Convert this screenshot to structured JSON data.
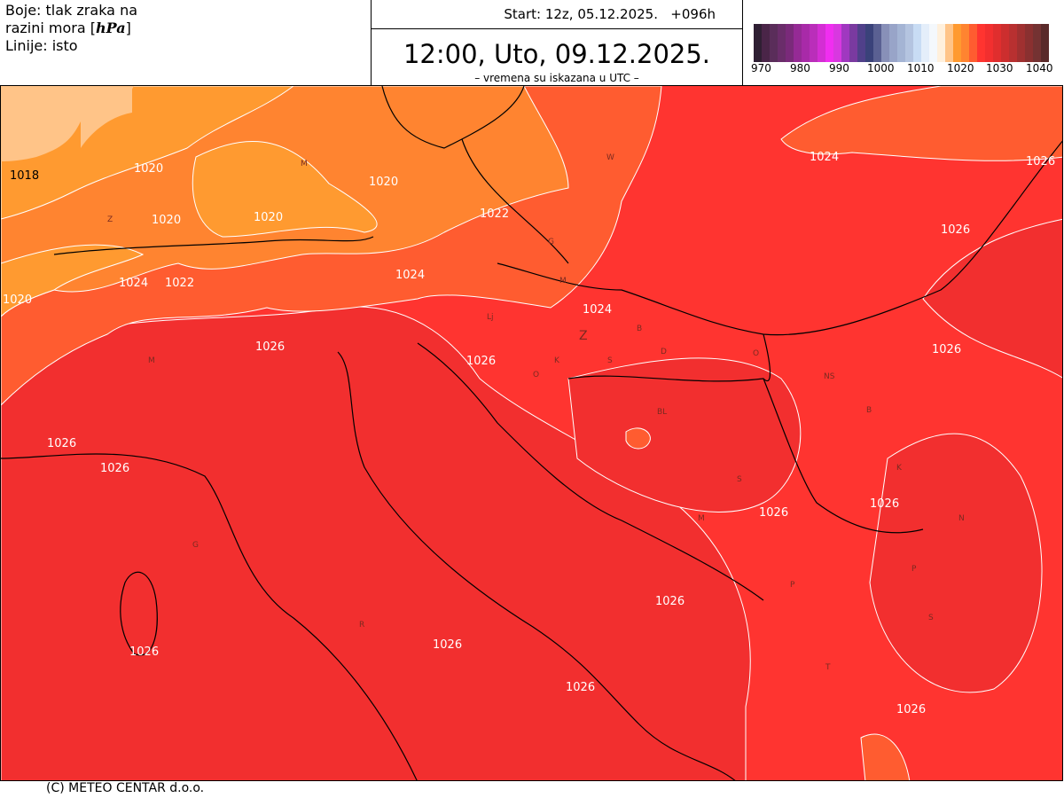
{
  "header": {
    "legend_lines": [
      "Boje: tlak zraka na",
      "razini mora [",
      "Linije: isto"
    ],
    "unit": "hPa",
    "start": "Start: 12z, 05.12.2025.   +096h",
    "valid_time": "12:00, Uto, 09.12.2025.",
    "utc_note": "– vremena su iskazana u UTC –"
  },
  "colorbar": {
    "ticks": [
      "970",
      "980",
      "990",
      "1000",
      "1010",
      "1020",
      "1030",
      "1040"
    ],
    "colors": [
      "#2f1f33",
      "#4a2548",
      "#5a2d5a",
      "#6a2d6a",
      "#7a2a7a",
      "#952a95",
      "#a82aa8",
      "#ba2eba",
      "#d42ed4",
      "#f02ef0",
      "#d838e0",
      "#a038c0",
      "#7a3aa0",
      "#50408a",
      "#3a427a",
      "#5a6092",
      "#8890b8",
      "#98a4c8",
      "#a4b4d4",
      "#b4c4e0",
      "#c8dcf4",
      "#e4eefa",
      "#f4f8fc",
      "#fff0dc",
      "#ffc488",
      "#ff9a30",
      "#ff8430",
      "#ff5c30",
      "#ff3430",
      "#f22f2f",
      "#e02e2e",
      "#cc2e2e",
      "#b83030",
      "#a03030",
      "#8a3030",
      "#743232",
      "#5a2a2a"
    ]
  },
  "map": {
    "colors": {
      "p1018": "#ffc488",
      "p1020": "#ff9a30",
      "p1022": "#ff8430",
      "p1024": "#ff5c30",
      "p1026": "#ff3430",
      "p1028": "#f22f2f",
      "contour": "#ffffff",
      "border": "#000000"
    },
    "contour_labels": [
      "1018",
      "1020",
      "1020",
      "1020",
      "1020",
      "1020",
      "1022",
      "1022",
      "1024",
      "1024",
      "1024",
      "1024",
      "1026",
      "1026",
      "1026",
      "1026",
      "1026",
      "1026",
      "1026",
      "1026",
      "1026",
      "1026",
      "1026",
      "1026",
      "1026",
      "1026"
    ],
    "place_labels": [
      "M",
      "Z",
      "W",
      "G",
      "M",
      "Lj",
      "Z",
      "B",
      "D",
      "O",
      "K",
      "S",
      "O",
      "NS",
      "BL",
      "B",
      "S",
      "K",
      "M",
      "N",
      "P",
      "P",
      "S",
      "T",
      "M",
      "R",
      "G"
    ]
  },
  "footer": "(C) METEO CENTAR d.o.o."
}
